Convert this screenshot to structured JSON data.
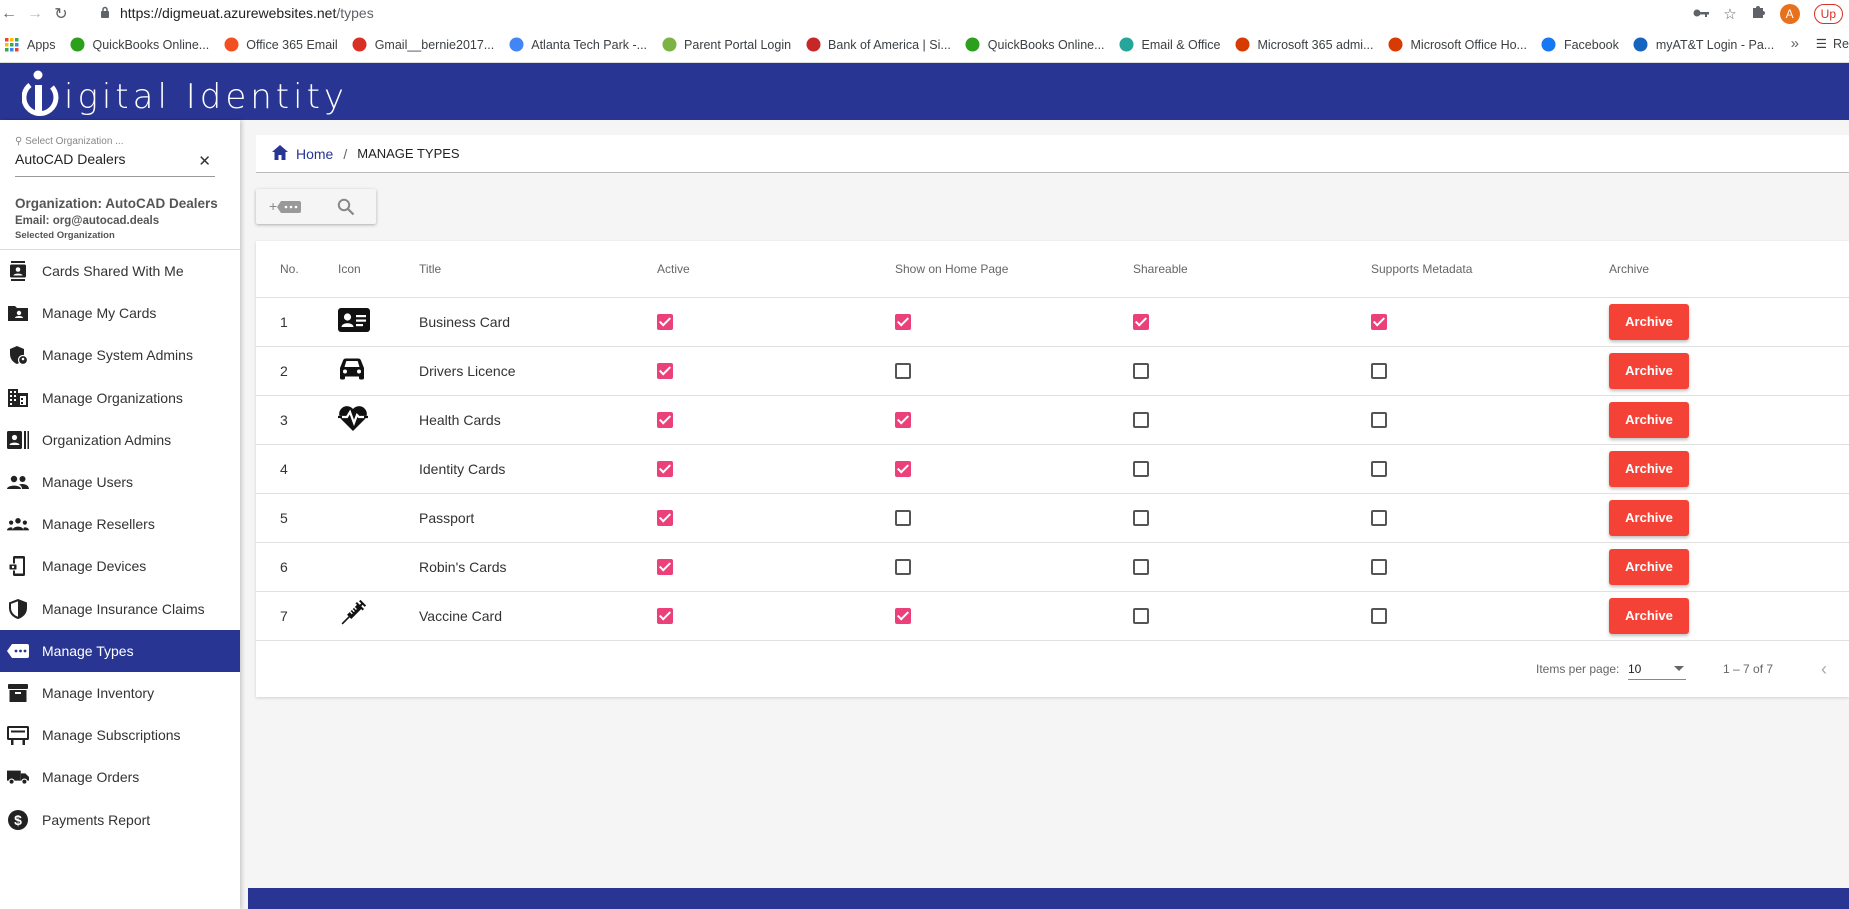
{
  "browser": {
    "url_host": "https://digmeuat.azurewebsites.net",
    "url_path": "/types",
    "avatar_letter": "A",
    "update_label": "Up",
    "bookmarks": [
      {
        "label": "Apps",
        "icon": "apps-grid-icon",
        "color": "#4285f4"
      },
      {
        "label": "QuickBooks Online...",
        "icon": "quickbooks-icon",
        "color": "#2ca01c"
      },
      {
        "label": "Office 365 Email",
        "icon": "microsoft-icon",
        "color": "#f25022"
      },
      {
        "label": "Gmail__bernie2017...",
        "icon": "gmail-icon",
        "color": "#d93025"
      },
      {
        "label": "Atlanta Tech Park -...",
        "icon": "google-icon",
        "color": "#4285f4"
      },
      {
        "label": "Parent Portal Login",
        "icon": "portal-icon",
        "color": "#7cb342"
      },
      {
        "label": "Bank of America | Si...",
        "icon": "boa-icon",
        "color": "#c62828"
      },
      {
        "label": "QuickBooks Online...",
        "icon": "quickbooks-icon",
        "color": "#2ca01c"
      },
      {
        "label": "Email & Office",
        "icon": "email-office-icon",
        "color": "#26a69a"
      },
      {
        "label": "Microsoft 365 admi...",
        "icon": "office-icon",
        "color": "#d83b01"
      },
      {
        "label": "Microsoft Office Ho...",
        "icon": "office-icon",
        "color": "#d83b01"
      },
      {
        "label": "Facebook",
        "icon": "facebook-icon",
        "color": "#1877f2"
      },
      {
        "label": "myAT&T Login - Pa...",
        "icon": "key-icon",
        "color": "#1565c0"
      }
    ],
    "more_label": "»",
    "reading_list_label": "Re"
  },
  "header": {
    "logo_text": "igital Identity"
  },
  "sidebar": {
    "org_placeholder": "Select Organization ...",
    "org_value": "AutoCAD Dealers",
    "org_name": "Organization: AutoCAD Dealers",
    "org_email": "Email: org@autocad.deals",
    "org_selected": "Selected Organization",
    "items": [
      {
        "label": "Cards Shared With Me",
        "icon": "contacts-icon",
        "active": false
      },
      {
        "label": "Manage My Cards",
        "icon": "folder-user-icon",
        "active": false
      },
      {
        "label": "Manage System Admins",
        "icon": "admin-shield-icon",
        "active": false
      },
      {
        "label": "Manage Organizations",
        "icon": "building-icon",
        "active": false
      },
      {
        "label": "Organization Admins",
        "icon": "id-badge-icon",
        "active": false
      },
      {
        "label": "Manage Users",
        "icon": "users-icon",
        "active": false
      },
      {
        "label": "Manage Resellers",
        "icon": "group-icon",
        "active": false
      },
      {
        "label": "Manage Devices",
        "icon": "device-icon",
        "active": false
      },
      {
        "label": "Manage Insurance Claims",
        "icon": "shield-icon",
        "active": false
      },
      {
        "label": "Manage Types",
        "icon": "label-icon",
        "active": true
      },
      {
        "label": "Manage Inventory",
        "icon": "archive-box-icon",
        "active": false
      },
      {
        "label": "Manage Subscriptions",
        "icon": "subscriptions-icon",
        "active": false
      },
      {
        "label": "Manage Orders",
        "icon": "truck-icon",
        "active": false
      },
      {
        "label": "Payments Report",
        "icon": "dollar-icon",
        "active": false
      }
    ]
  },
  "breadcrumb": {
    "home": "Home",
    "separator": "/",
    "current": "MANAGE TYPES"
  },
  "table": {
    "headers": {
      "no": "No.",
      "icon": "Icon",
      "title": "Title",
      "active": "Active",
      "home": "Show on Home Page",
      "shareable": "Shareable",
      "metadata": "Supports Metadata",
      "archive": "Archive"
    },
    "archive_label": "Archive",
    "rows": [
      {
        "no": "1",
        "icon": "business-card-icon",
        "title": "Business Card",
        "active": true,
        "home": true,
        "shareable": true,
        "metadata": true
      },
      {
        "no": "2",
        "icon": "car-icon",
        "title": "Drivers Licence",
        "active": true,
        "home": false,
        "shareable": false,
        "metadata": false
      },
      {
        "no": "3",
        "icon": "heart-pulse-icon",
        "title": "Health Cards",
        "active": true,
        "home": true,
        "shareable": false,
        "metadata": false
      },
      {
        "no": "4",
        "icon": "",
        "title": "Identity Cards",
        "active": true,
        "home": true,
        "shareable": false,
        "metadata": false
      },
      {
        "no": "5",
        "icon": "",
        "title": "Passport",
        "active": true,
        "home": false,
        "shareable": false,
        "metadata": false
      },
      {
        "no": "6",
        "icon": "",
        "title": "Robin's Cards",
        "active": true,
        "home": false,
        "shareable": false,
        "metadata": false
      },
      {
        "no": "7",
        "icon": "syringe-icon",
        "title": "Vaccine Card",
        "active": true,
        "home": true,
        "shareable": false,
        "metadata": false
      }
    ]
  },
  "paginator": {
    "items_per_page_label": "Items per page:",
    "items_per_page": "10",
    "range": "1 – 7 of 7"
  },
  "colors": {
    "primary": "#283593",
    "checkbox": "#ec407a",
    "archive": "#f44336"
  }
}
